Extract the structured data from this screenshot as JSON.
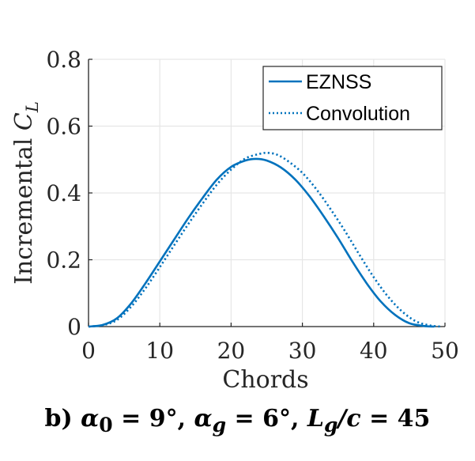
{
  "chart_data": {
    "type": "line",
    "xlabel": "Chords",
    "ylabel": "Incremental",
    "ylabel_symbol": "C",
    "ylabel_subscript": "L",
    "xlim": [
      0,
      50
    ],
    "ylim": [
      0,
      0.8
    ],
    "xticks": [
      "0",
      "10",
      "20",
      "30",
      "40",
      "50"
    ],
    "yticks": [
      "0",
      "0.2",
      "0.4",
      "0.6",
      "0.8"
    ],
    "grid": true,
    "legend_position": "top-right",
    "colors": {
      "line": "#0072BD",
      "axis": "#262626",
      "grid": "#e6e6e6"
    },
    "series": [
      {
        "name": "EZNSS",
        "style": "solid",
        "x": [
          0,
          2,
          4,
          6,
          8,
          10,
          12,
          14,
          16,
          18,
          20,
          22,
          23.5,
          25,
          27,
          29,
          31,
          33,
          35,
          37,
          39,
          41,
          43,
          45,
          47,
          48.5
        ],
        "y": [
          0,
          0.005,
          0.025,
          0.07,
          0.13,
          0.195,
          0.26,
          0.325,
          0.385,
          0.44,
          0.478,
          0.497,
          0.502,
          0.497,
          0.476,
          0.44,
          0.39,
          0.33,
          0.265,
          0.195,
          0.13,
          0.075,
          0.035,
          0.01,
          0.002,
          0
        ]
      },
      {
        "name": "Convolution",
        "style": "dotted",
        "x": [
          0,
          2,
          4,
          6,
          8,
          10,
          12,
          14,
          16,
          18,
          20,
          22,
          24,
          25.2,
          26.5,
          28,
          30,
          32,
          34,
          36,
          38,
          40,
          42,
          44,
          46,
          48,
          49.5
        ],
        "y": [
          0,
          0.004,
          0.02,
          0.06,
          0.115,
          0.178,
          0.243,
          0.307,
          0.368,
          0.425,
          0.47,
          0.503,
          0.517,
          0.52,
          0.514,
          0.495,
          0.46,
          0.41,
          0.35,
          0.285,
          0.215,
          0.148,
          0.09,
          0.045,
          0.015,
          0.003,
          0
        ]
      }
    ]
  },
  "caption": {
    "prefix": "b) ",
    "alpha0": "α",
    "alpha0_sub": "0",
    "alpha0_value": " = 9°, ",
    "alphag": "α",
    "alphag_sub": "g",
    "alphag_value": " = 6°, ",
    "lg": "L",
    "lg_sub": "g",
    "lg_rest": "/c",
    "lg_value": " = 45"
  }
}
